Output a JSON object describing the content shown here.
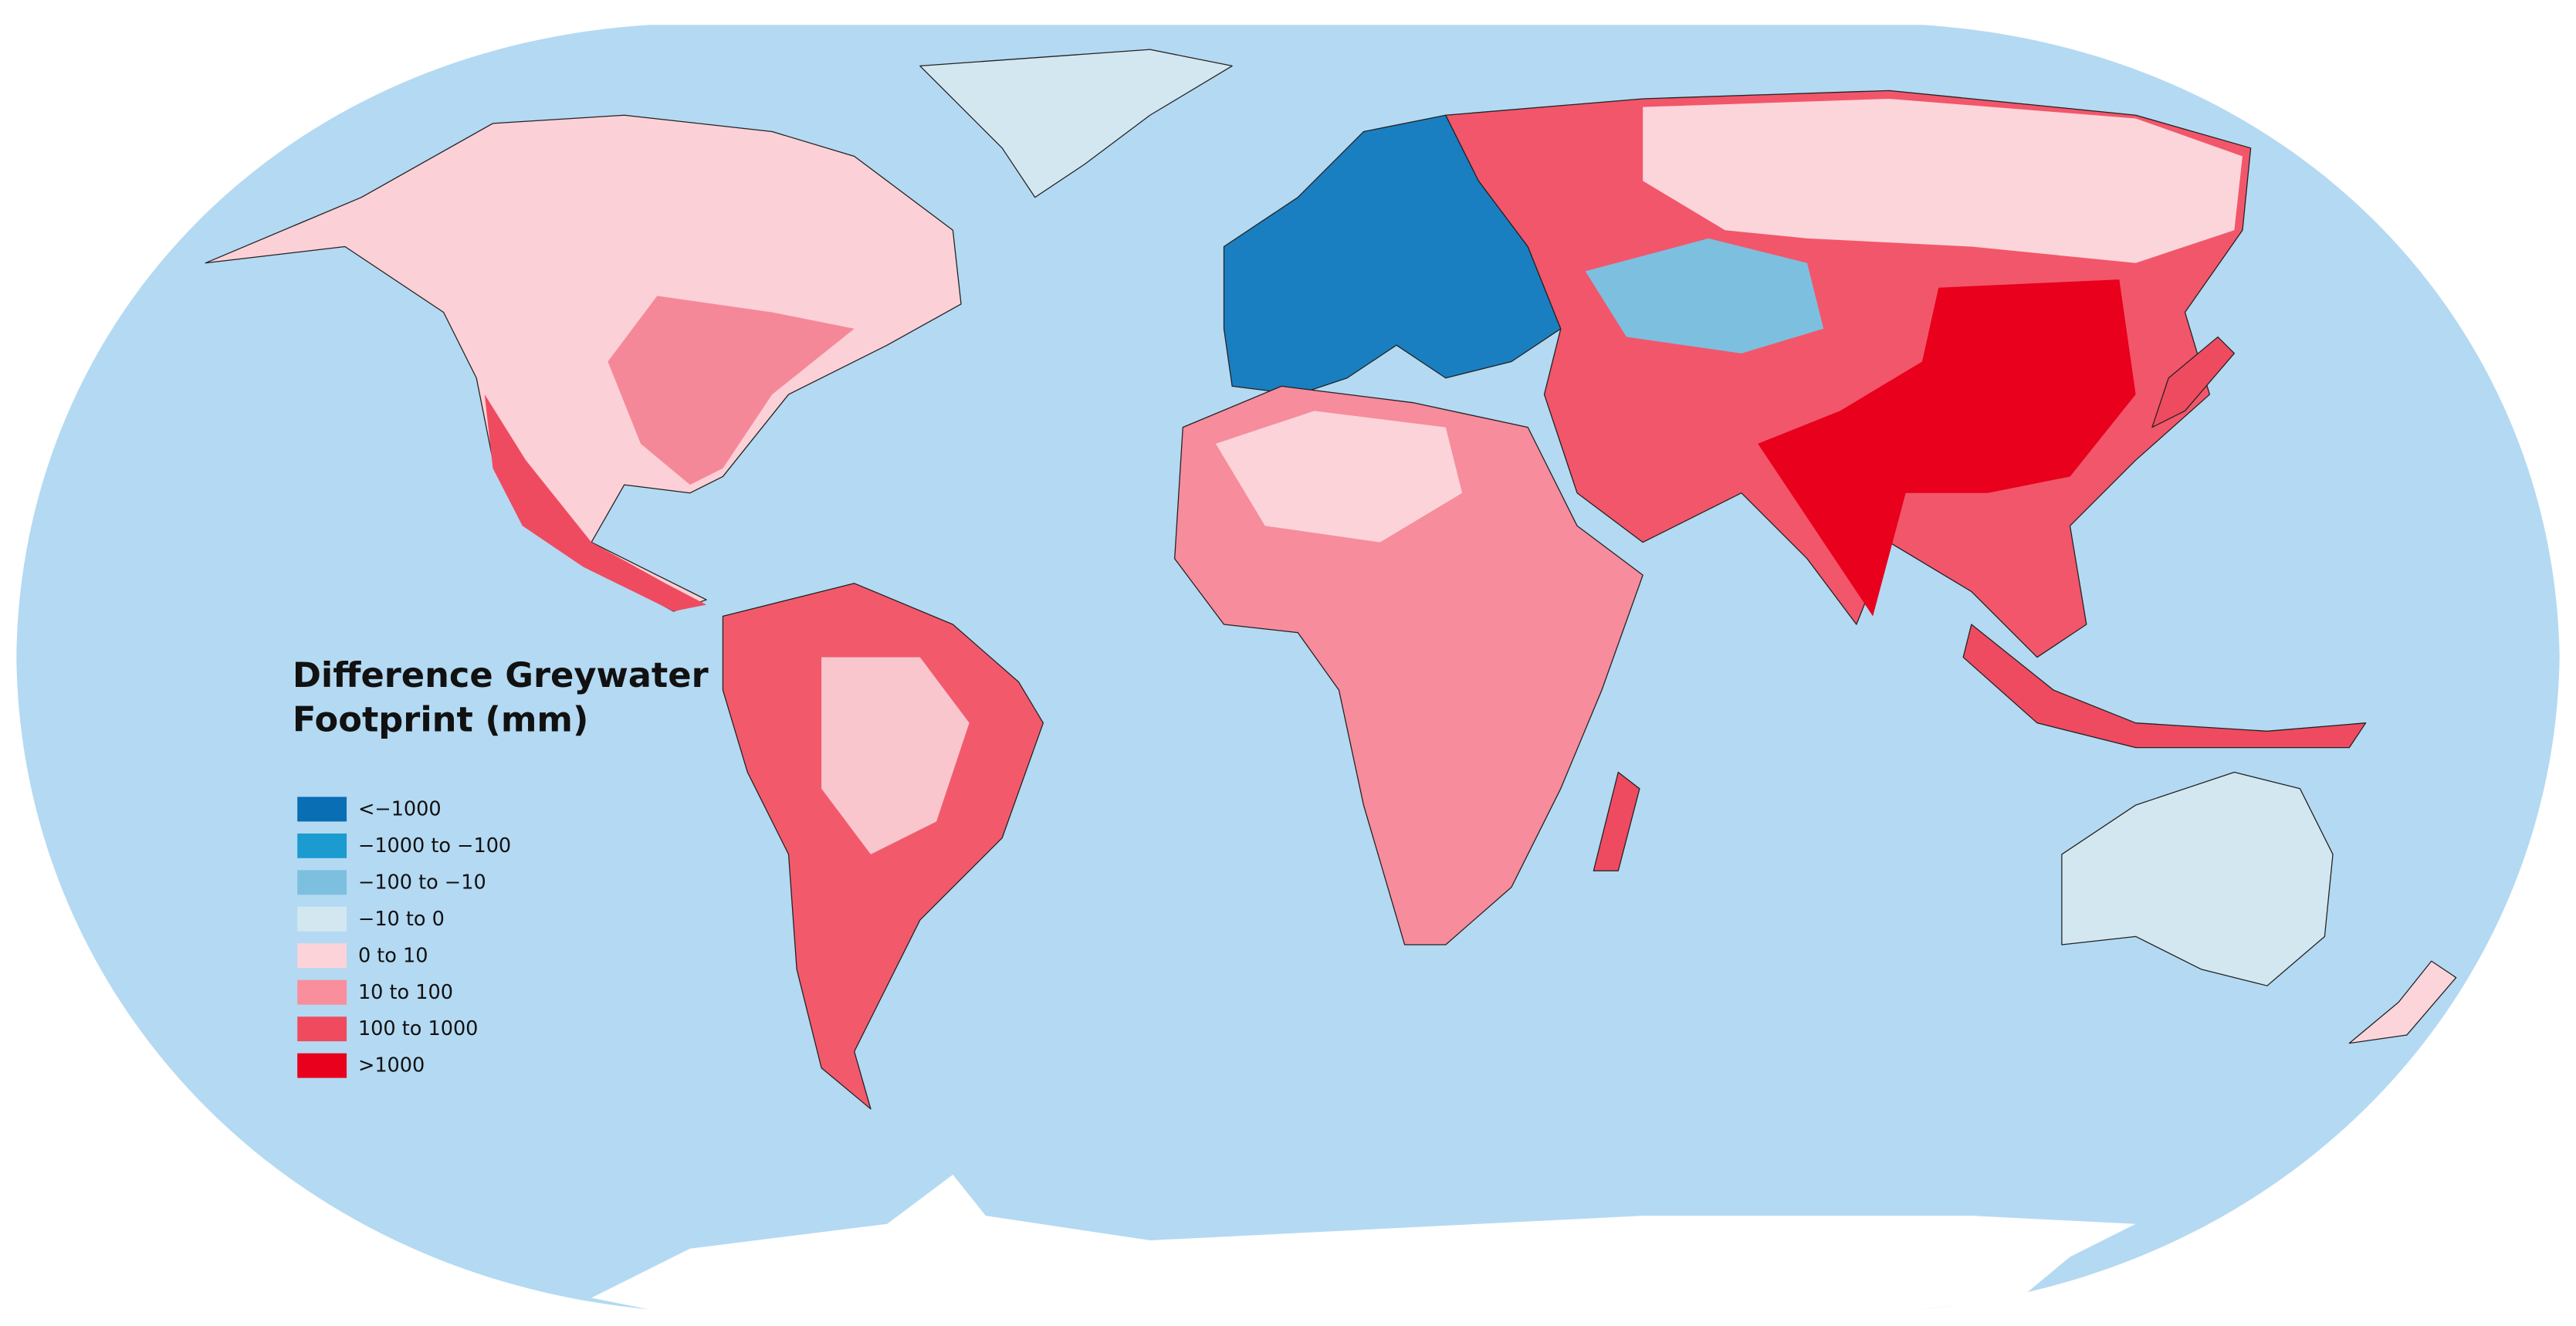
{
  "map": {
    "title": "Difference Greywater Footprint (mm)",
    "legend": [
      {
        "label": "<−1000",
        "color": "#0a6eb4"
      },
      {
        "label": "−1000 to −100",
        "color": "#1b9bd0"
      },
      {
        "label": "−100 to −10",
        "color": "#7dbfdf"
      },
      {
        "label": "−10 to 0",
        "color": "#d3e7f1"
      },
      {
        "label": "0 to 10",
        "color": "#fcd3d9"
      },
      {
        "label": "10 to 100",
        "color": "#f98e9c"
      },
      {
        "label": "100 to 1000",
        "color": "#f04a5e"
      },
      {
        "label": ">1000",
        "color": "#e8001c"
      }
    ]
  }
}
